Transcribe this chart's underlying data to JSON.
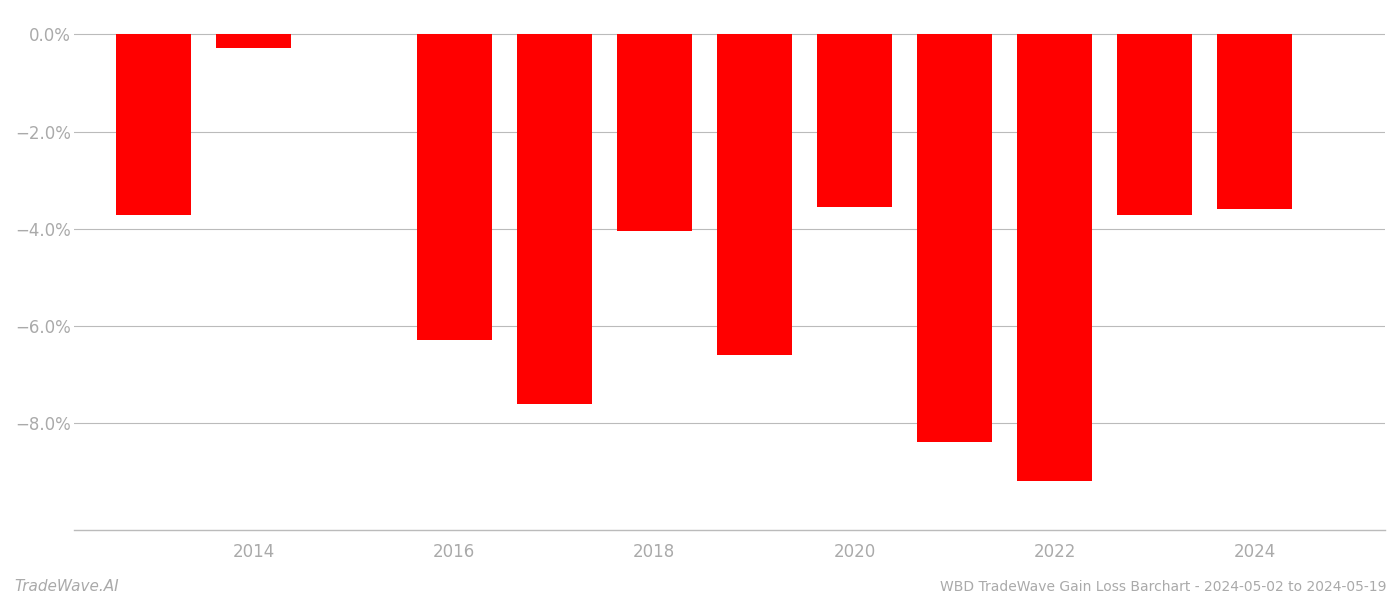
{
  "years": [
    2013,
    2014,
    2016,
    2017,
    2018,
    2019,
    2020,
    2021,
    2022,
    2023,
    2024
  ],
  "values": [
    -3.72,
    -0.28,
    -6.3,
    -7.6,
    -4.05,
    -6.6,
    -3.55,
    -8.4,
    -9.2,
    -3.72,
    -3.6
  ],
  "bar_color": "#ff0000",
  "background_color": "#ffffff",
  "grid_color": "#bbbbbb",
  "xlabel_color": "#aaaaaa",
  "ylabel_color": "#aaaaaa",
  "ylim": [
    -10.2,
    0.4
  ],
  "yticks": [
    0.0,
    -2.0,
    -4.0,
    -6.0,
    -8.0
  ],
  "footer_left": "TradeWave.AI",
  "footer_right": "WBD TradeWave Gain Loss Barchart - 2024-05-02 to 2024-05-19",
  "bar_width": 0.75,
  "xlim": [
    2012.2,
    2025.3
  ]
}
